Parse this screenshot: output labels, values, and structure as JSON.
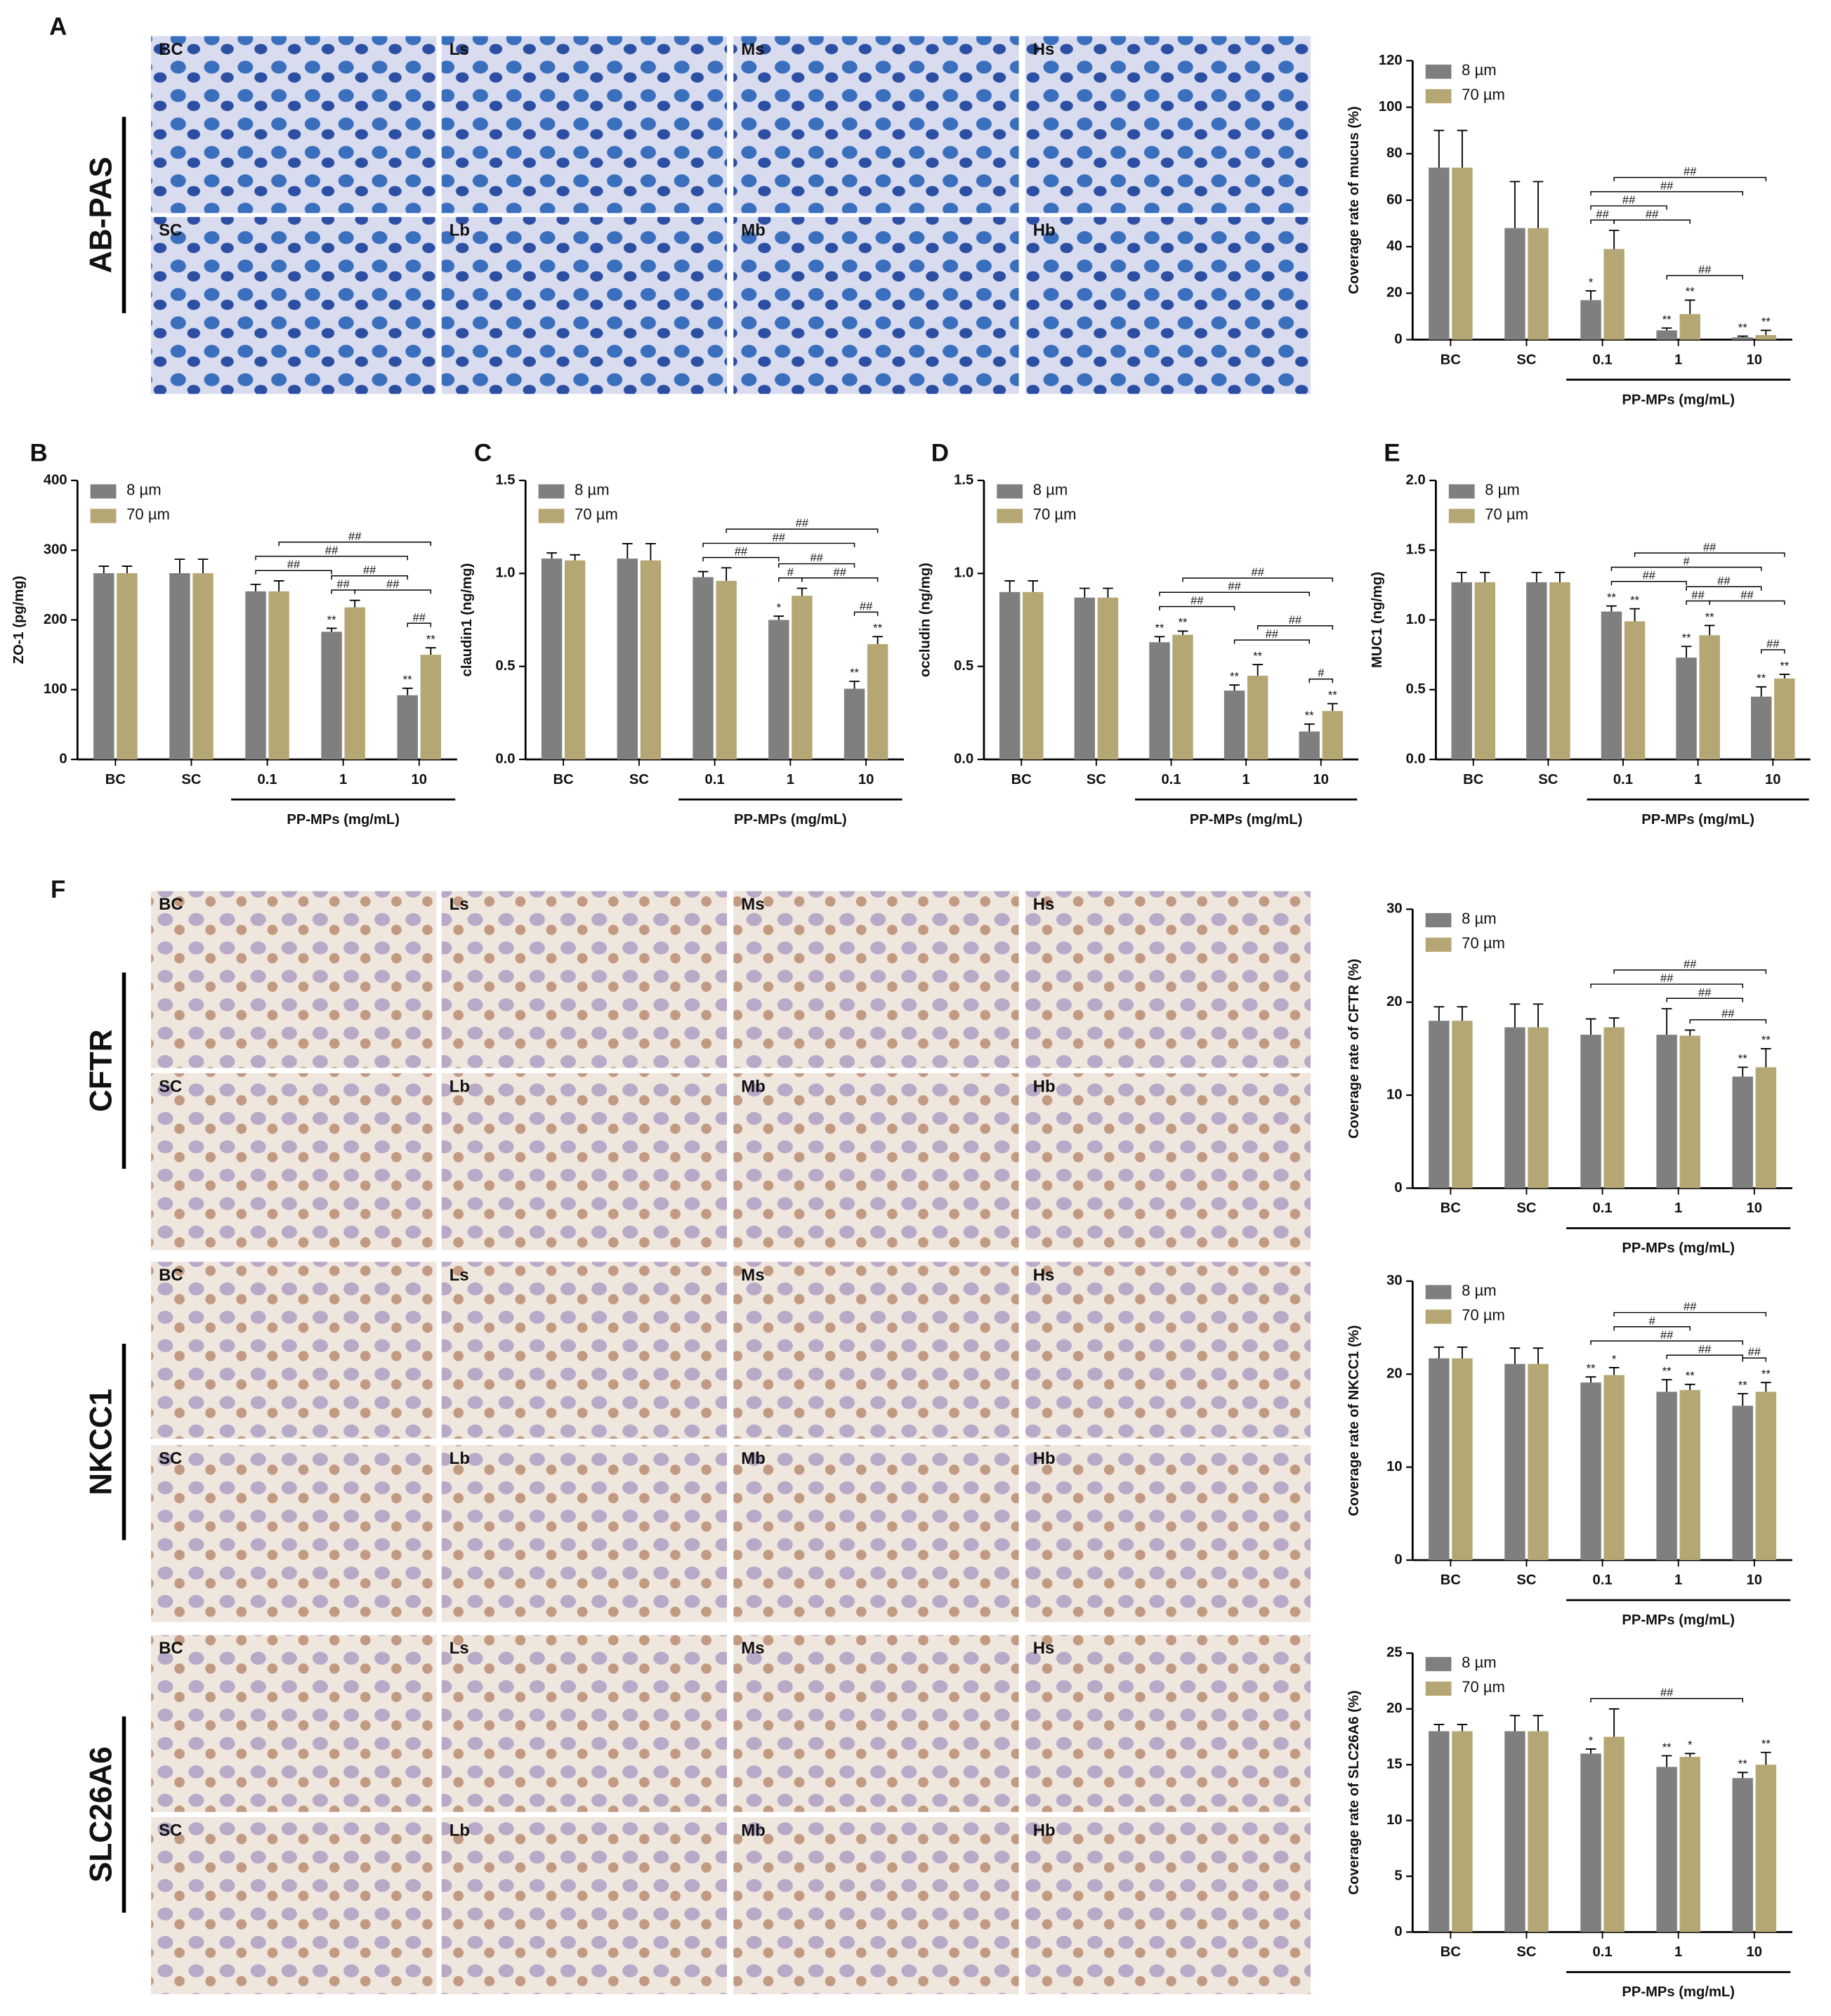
{
  "micrograph_panels": [
    {
      "stain": "AB-PAS",
      "rows": [
        [
          "BC",
          "Ls",
          "Ms",
          "Hs"
        ],
        [
          "SC",
          "Lb",
          "Mb",
          "Hb"
        ]
      ]
    },
    {
      "stain": "CFTR",
      "rows": [
        [
          "BC",
          "Ls",
          "Ms",
          "Hs"
        ],
        [
          "SC",
          "Lb",
          "Mb",
          "Hb"
        ]
      ]
    },
    {
      "stain": "NKCC1",
      "rows": [
        [
          "BC",
          "Ls",
          "Ms",
          "Hs"
        ],
        [
          "SC",
          "Lb",
          "Mb",
          "Hb"
        ]
      ]
    },
    {
      "stain": "SLC26A6",
      "rows": [
        [
          "BC",
          "Ls",
          "Ms",
          "Hs"
        ],
        [
          "SC",
          "Lb",
          "Mb",
          "Hb"
        ]
      ]
    }
  ],
  "chart_data": [
    {
      "type": "bar",
      "panel": "A",
      "ylabel": "Coverage rate of mucus (%)",
      "categories": [
        "BC",
        "SC",
        "0.1",
        "1",
        "10"
      ],
      "group_label": "PP-MPs (mg/mL)",
      "series": [
        {
          "name": "8 µm",
          "color": "#7f7f7f",
          "values": [
            74,
            48,
            17,
            4,
            1
          ],
          "errors": [
            16,
            20,
            4,
            1,
            0.5
          ],
          "significance": [
            null,
            null,
            "*",
            "**",
            "**"
          ]
        },
        {
          "name": "70 µm",
          "color": "#b5a773",
          "values": [
            74,
            48,
            39,
            11,
            2
          ],
          "errors": [
            16,
            20,
            8,
            6,
            2
          ],
          "significance": [
            null,
            null,
            null,
            "**",
            "**"
          ]
        }
      ],
      "ylim": [
        0,
        120
      ],
      "yticks": [
        0,
        20,
        40,
        60,
        80,
        100,
        120
      ],
      "legend": "upper left",
      "brackets": [
        {
          "label": "##",
          "from": [
            0,
            2
          ],
          "to": [
            1,
            2
          ]
        },
        {
          "label": "##",
          "from": [
            0,
            2
          ],
          "to": [
            0,
            3
          ]
        },
        {
          "label": "##",
          "from": [
            0,
            3
          ],
          "to": [
            0,
            4
          ]
        },
        {
          "label": "##",
          "from": [
            0,
            2
          ],
          "to": [
            0,
            4
          ]
        },
        {
          "label": "##",
          "from": [
            1,
            2
          ],
          "to": [
            1,
            3
          ]
        },
        {
          "label": "##",
          "from": [
            1,
            2
          ],
          "to": [
            1,
            4
          ]
        }
      ]
    },
    {
      "type": "bar",
      "panel": "B",
      "ylabel": "ZO-1 (pg/mg)",
      "categories": [
        "BC",
        "SC",
        "0.1",
        "1",
        "10"
      ],
      "group_label": "PP-MPs (mg/mL)",
      "series": [
        {
          "name": "8 µm",
          "color": "#7f7f7f",
          "values": [
            267,
            267,
            241,
            183,
            92
          ],
          "errors": [
            10,
            20,
            10,
            5,
            10
          ],
          "significance": [
            null,
            null,
            null,
            "**",
            "**"
          ]
        },
        {
          "name": "70 µm",
          "color": "#b5a773",
          "values": [
            267,
            267,
            241,
            218,
            150
          ],
          "errors": [
            10,
            20,
            15,
            10,
            10
          ],
          "significance": [
            null,
            null,
            null,
            null,
            "**"
          ]
        }
      ],
      "ylim": [
        0,
        400
      ],
      "yticks": [
        0,
        100,
        200,
        300,
        400
      ],
      "legend": "upper left",
      "brackets": [
        {
          "label": "##",
          "from": [
            0,
            3
          ],
          "to": [
            1,
            3
          ]
        },
        {
          "label": "##",
          "from": [
            0,
            4
          ],
          "to": [
            1,
            4
          ]
        },
        {
          "label": "##",
          "from": [
            0,
            2
          ],
          "to": [
            0,
            3
          ]
        },
        {
          "label": "##",
          "from": [
            0,
            3
          ],
          "to": [
            0,
            4
          ]
        },
        {
          "label": "##",
          "from": [
            0,
            2
          ],
          "to": [
            0,
            4
          ]
        },
        {
          "label": "##",
          "from": [
            1,
            3
          ],
          "to": [
            1,
            4
          ]
        },
        {
          "label": "##",
          "from": [
            1,
            2
          ],
          "to": [
            1,
            4
          ]
        }
      ]
    },
    {
      "type": "bar",
      "panel": "C",
      "ylabel": "claudin1 (ng/mg)",
      "categories": [
        "BC",
        "SC",
        "0.1",
        "1",
        "10"
      ],
      "group_label": "PP-MPs (mg/mL)",
      "series": [
        {
          "name": "8 µm",
          "color": "#7f7f7f",
          "values": [
            1.08,
            1.08,
            0.98,
            0.75,
            0.38
          ],
          "errors": [
            0.03,
            0.08,
            0.03,
            0.02,
            0.04
          ],
          "significance": [
            null,
            null,
            null,
            "*",
            "**"
          ]
        },
        {
          "name": "70 µm",
          "color": "#b5a773",
          "values": [
            1.07,
            1.07,
            0.96,
            0.88,
            0.62
          ],
          "errors": [
            0.03,
            0.09,
            0.07,
            0.04,
            0.04
          ],
          "significance": [
            null,
            null,
            null,
            null,
            "**"
          ]
        }
      ],
      "ylim": [
        0,
        1.5
      ],
      "yticks": [
        {
          "value": 0,
          "label": "0.0"
        },
        0.5,
        {
          "value": 1,
          "label": "1.0"
        },
        1.5
      ],
      "legend": "upper left",
      "brackets": [
        {
          "label": "#",
          "from": [
            0,
            3
          ],
          "to": [
            1,
            3
          ]
        },
        {
          "label": "##",
          "from": [
            0,
            4
          ],
          "to": [
            1,
            4
          ]
        },
        {
          "label": "##",
          "from": [
            0,
            2
          ],
          "to": [
            0,
            3
          ]
        },
        {
          "label": "##",
          "from": [
            0,
            3
          ],
          "to": [
            0,
            4
          ]
        },
        {
          "label": "##",
          "from": [
            0,
            2
          ],
          "to": [
            0,
            4
          ]
        },
        {
          "label": "##",
          "from": [
            1,
            3
          ],
          "to": [
            1,
            4
          ]
        },
        {
          "label": "##",
          "from": [
            1,
            2
          ],
          "to": [
            1,
            4
          ]
        }
      ]
    },
    {
      "type": "bar",
      "panel": "D",
      "ylabel": "occludin (ng/mg)",
      "categories": [
        "BC",
        "SC",
        "0.1",
        "1",
        "10"
      ],
      "group_label": "PP-MPs (mg/mL)",
      "series": [
        {
          "name": "8 µm",
          "color": "#7f7f7f",
          "values": [
            0.9,
            0.87,
            0.63,
            0.37,
            0.15
          ],
          "errors": [
            0.06,
            0.05,
            0.03,
            0.03,
            0.04
          ],
          "significance": [
            null,
            null,
            "**",
            "**",
            "**"
          ]
        },
        {
          "name": "70 µm",
          "color": "#b5a773",
          "values": [
            0.9,
            0.87,
            0.67,
            0.45,
            0.26
          ],
          "errors": [
            0.06,
            0.05,
            0.02,
            0.06,
            0.04
          ],
          "significance": [
            null,
            null,
            "**",
            "**",
            "**"
          ]
        }
      ],
      "ylim": [
        0,
        1.5
      ],
      "yticks": [
        {
          "value": 0,
          "label": "0.0"
        },
        0.5,
        {
          "value": 1,
          "label": "1.0"
        },
        1.5
      ],
      "legend": "upper left",
      "brackets": [
        {
          "label": "#",
          "from": [
            0,
            4
          ],
          "to": [
            1,
            4
          ]
        },
        {
          "label": "##",
          "from": [
            0,
            2
          ],
          "to": [
            0,
            3
          ]
        },
        {
          "label": "##",
          "from": [
            0,
            3
          ],
          "to": [
            0,
            4
          ]
        },
        {
          "label": "##",
          "from": [
            0,
            2
          ],
          "to": [
            0,
            4
          ]
        },
        {
          "label": "##",
          "from": [
            1,
            3
          ],
          "to": [
            1,
            4
          ]
        },
        {
          "label": "##",
          "from": [
            1,
            2
          ],
          "to": [
            1,
            4
          ]
        }
      ]
    },
    {
      "type": "bar",
      "panel": "E",
      "ylabel": "MUC1 (ng/mg)",
      "categories": [
        "BC",
        "SC",
        "0.1",
        "1",
        "10"
      ],
      "group_label": "PP-MPs (mg/mL)",
      "series": [
        {
          "name": "8 µm",
          "color": "#7f7f7f",
          "values": [
            1.27,
            1.27,
            1.06,
            0.73,
            0.45
          ],
          "errors": [
            0.07,
            0.07,
            0.04,
            0.08,
            0.07
          ],
          "significance": [
            null,
            null,
            "**",
            "**",
            "**"
          ]
        },
        {
          "name": "70 µm",
          "color": "#b5a773",
          "values": [
            1.27,
            1.27,
            0.99,
            0.89,
            0.58
          ],
          "errors": [
            0.07,
            0.07,
            0.09,
            0.07,
            0.03
          ],
          "significance": [
            null,
            null,
            "**",
            "**",
            "**"
          ]
        }
      ],
      "ylim": [
        0,
        2
      ],
      "yticks": [
        {
          "value": 0,
          "label": "0.0"
        },
        0.5,
        {
          "value": 1,
          "label": "1.0"
        },
        1.5,
        {
          "value": 2,
          "label": "2.0"
        }
      ],
      "legend": "upper left",
      "brackets": [
        {
          "label": "##",
          "from": [
            0,
            3
          ],
          "to": [
            1,
            3
          ]
        },
        {
          "label": "##",
          "from": [
            0,
            4
          ],
          "to": [
            1,
            4
          ]
        },
        {
          "label": "##",
          "from": [
            0,
            2
          ],
          "to": [
            0,
            3
          ]
        },
        {
          "label": "##",
          "from": [
            0,
            3
          ],
          "to": [
            0,
            4
          ]
        },
        {
          "label": "#",
          "from": [
            0,
            2
          ],
          "to": [
            0,
            4
          ]
        },
        {
          "label": "##",
          "from": [
            1,
            3
          ],
          "to": [
            1,
            4
          ]
        },
        {
          "label": "##",
          "from": [
            1,
            2
          ],
          "to": [
            1,
            4
          ]
        }
      ]
    },
    {
      "type": "bar",
      "panel": "F",
      "ylabel": "Coverage rate of CFTR (%)",
      "categories": [
        "BC",
        "SC",
        "0.1",
        "1",
        "10"
      ],
      "group_label": "PP-MPs (mg/mL)",
      "series": [
        {
          "name": "8 µm",
          "color": "#7f7f7f",
          "values": [
            18,
            17.3,
            16.5,
            16.5,
            12
          ],
          "errors": [
            1.5,
            2.5,
            1.7,
            2.8,
            1
          ],
          "significance": [
            null,
            null,
            null,
            null,
            "**"
          ]
        },
        {
          "name": "70 µm",
          "color": "#b5a773",
          "values": [
            18,
            17.3,
            17.3,
            16.4,
            13
          ],
          "errors": [
            1.5,
            2.5,
            1,
            0.6,
            2
          ],
          "significance": [
            null,
            null,
            null,
            null,
            "**"
          ]
        }
      ],
      "ylim": [
        0,
        30
      ],
      "yticks": [
        0,
        10,
        20,
        30
      ],
      "legend": "upper left",
      "brackets": [
        {
          "label": "##",
          "from": [
            0,
            3
          ],
          "to": [
            0,
            4
          ]
        },
        {
          "label": "##",
          "from": [
            0,
            2
          ],
          "to": [
            0,
            4
          ]
        },
        {
          "label": "##",
          "from": [
            1,
            3
          ],
          "to": [
            1,
            4
          ]
        },
        {
          "label": "##",
          "from": [
            1,
            2
          ],
          "to": [
            1,
            4
          ]
        }
      ]
    },
    {
      "type": "bar",
      "ylabel": "Coverage rate of NKCC1 (%)",
      "categories": [
        "BC",
        "SC",
        "0.1",
        "1",
        "10"
      ],
      "group_label": "PP-MPs (mg/mL)",
      "series": [
        {
          "name": "8 µm",
          "color": "#7f7f7f",
          "values": [
            21.7,
            21.1,
            19.1,
            18.1,
            16.6
          ],
          "errors": [
            1.2,
            1.7,
            0.6,
            1.3,
            1.3
          ],
          "significance": [
            null,
            null,
            "**",
            "**",
            "**"
          ]
        },
        {
          "name": "70 µm",
          "color": "#b5a773",
          "values": [
            21.7,
            21.1,
            19.9,
            18.3,
            18.1
          ],
          "errors": [
            1.2,
            1.7,
            0.8,
            0.6,
            1
          ],
          "significance": [
            null,
            null,
            "*",
            "**",
            "**"
          ]
        }
      ],
      "ylim": [
        0,
        30
      ],
      "yticks": [
        0,
        10,
        20,
        30
      ],
      "legend": "upper left",
      "brackets": [
        {
          "label": "##",
          "from": [
            0,
            4
          ],
          "to": [
            1,
            4
          ]
        },
        {
          "label": "##",
          "from": [
            0,
            3
          ],
          "to": [
            0,
            4
          ]
        },
        {
          "label": "##",
          "from": [
            0,
            2
          ],
          "to": [
            0,
            4
          ]
        },
        {
          "label": "#",
          "from": [
            1,
            2
          ],
          "to": [
            1,
            3
          ]
        },
        {
          "label": "##",
          "from": [
            1,
            2
          ],
          "to": [
            1,
            4
          ]
        }
      ]
    },
    {
      "type": "bar",
      "ylabel": "Coverage rate of SLC26A6 (%)",
      "categories": [
        "BC",
        "SC",
        "0.1",
        "1",
        "10"
      ],
      "group_label": "PP-MPs (mg/mL)",
      "series": [
        {
          "name": "8 µm",
          "color": "#7f7f7f",
          "values": [
            18,
            18,
            16,
            14.8,
            13.8
          ],
          "errors": [
            0.6,
            1.4,
            0.4,
            1,
            0.5
          ],
          "significance": [
            null,
            null,
            "*",
            "**",
            "**"
          ]
        },
        {
          "name": "70 µm",
          "color": "#b5a773",
          "values": [
            18,
            18,
            17.5,
            15.7,
            15
          ],
          "errors": [
            0.6,
            1.4,
            2.5,
            0.3,
            1.1
          ],
          "significance": [
            null,
            null,
            null,
            "*",
            "**"
          ]
        }
      ],
      "ylim": [
        0,
        25
      ],
      "yticks": [
        0,
        5,
        10,
        15,
        20,
        25
      ],
      "legend": "upper left",
      "brackets": [
        {
          "label": "##",
          "from": [
            0,
            2
          ],
          "to": [
            0,
            4
          ]
        }
      ]
    }
  ]
}
